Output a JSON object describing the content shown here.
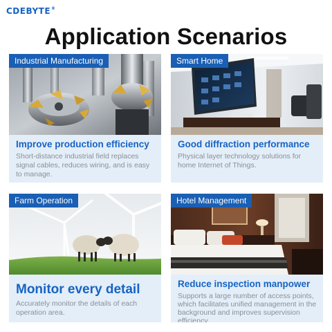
{
  "brand": {
    "name": "CDEBYTE",
    "reg": "®"
  },
  "page_title": "Application Scenarios",
  "cards": [
    {
      "tag": "Industrial Manufacturing",
      "headline": "Improve production efficiency",
      "description": "Short-distance industrial field replaces signal cables, reduces wiring, and is easy to manage.",
      "image": "milling-cutters-photo"
    },
    {
      "tag": "Smart Home",
      "headline": "Good diffraction performance",
      "description": "Physical layer technology solutions for home Internet of Things.",
      "image": "smart-living-room-photo"
    },
    {
      "tag": "Farm Operation",
      "headline": "Monitor every detail",
      "description": "Accurately monitor the details of each operation area.",
      "image": "sheep-wind-turbines-photo"
    },
    {
      "tag": "Hotel Management",
      "headline": "Reduce inspection manpower",
      "description": "Supports a large number of access points, which facilitates unified management in the background and improves supervision efficiency",
      "image": "hotel-room-photo"
    }
  ],
  "colors": {
    "brand_blue": "#1763c4",
    "tag_blue": "#1a5fb4",
    "card_bg": "#e3eef8",
    "desc_gray": "#8b8f96"
  }
}
